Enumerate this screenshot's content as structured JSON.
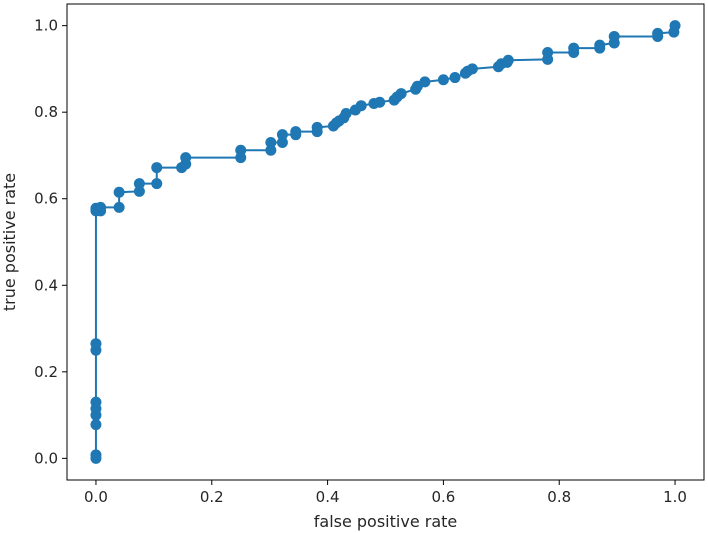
{
  "chart_data": {
    "type": "line",
    "xlabel": "false positive rate",
    "ylabel": "true positive rate",
    "xlim": [
      -0.05,
      1.05
    ],
    "ylim": [
      -0.05,
      1.05
    ],
    "xticks": [
      "0.0",
      "0.2",
      "0.4",
      "0.6",
      "0.8",
      "1.0"
    ],
    "yticks": [
      "0.0",
      "0.2",
      "0.4",
      "0.6",
      "0.8",
      "1.0"
    ],
    "grid": false,
    "series": [
      {
        "color": "#1f77b4",
        "marker": "circle",
        "x": [
          0.0,
          0.0,
          0.0,
          0.0,
          0.0,
          0.0,
          0.0,
          0.0,
          0.0,
          0.0,
          0.008,
          0.008,
          0.04,
          0.04,
          0.075,
          0.075,
          0.105,
          0.105,
          0.148,
          0.155,
          0.155,
          0.25,
          0.25,
          0.302,
          0.302,
          0.322,
          0.322,
          0.345,
          0.345,
          0.382,
          0.382,
          0.41,
          0.415,
          0.42,
          0.428,
          0.432,
          0.448,
          0.458,
          0.48,
          0.49,
          0.515,
          0.52,
          0.527,
          0.552,
          0.555,
          0.568,
          0.6,
          0.62,
          0.638,
          0.642,
          0.65,
          0.695,
          0.7,
          0.71,
          0.712,
          0.78,
          0.78,
          0.825,
          0.825,
          0.87,
          0.87,
          0.895,
          0.895,
          0.97,
          0.97,
          0.998,
          1.0
        ],
        "y": [
          0.0,
          0.008,
          0.078,
          0.1,
          0.115,
          0.13,
          0.25,
          0.265,
          0.572,
          0.578,
          0.572,
          0.58,
          0.58,
          0.615,
          0.617,
          0.635,
          0.635,
          0.672,
          0.672,
          0.68,
          0.695,
          0.695,
          0.712,
          0.712,
          0.73,
          0.73,
          0.748,
          0.748,
          0.755,
          0.755,
          0.765,
          0.768,
          0.775,
          0.78,
          0.787,
          0.797,
          0.805,
          0.815,
          0.82,
          0.823,
          0.828,
          0.835,
          0.843,
          0.853,
          0.86,
          0.87,
          0.875,
          0.88,
          0.89,
          0.895,
          0.9,
          0.905,
          0.912,
          0.915,
          0.92,
          0.922,
          0.938,
          0.938,
          0.948,
          0.948,
          0.955,
          0.96,
          0.975,
          0.975,
          0.982,
          0.985,
          1.0
        ]
      }
    ]
  }
}
